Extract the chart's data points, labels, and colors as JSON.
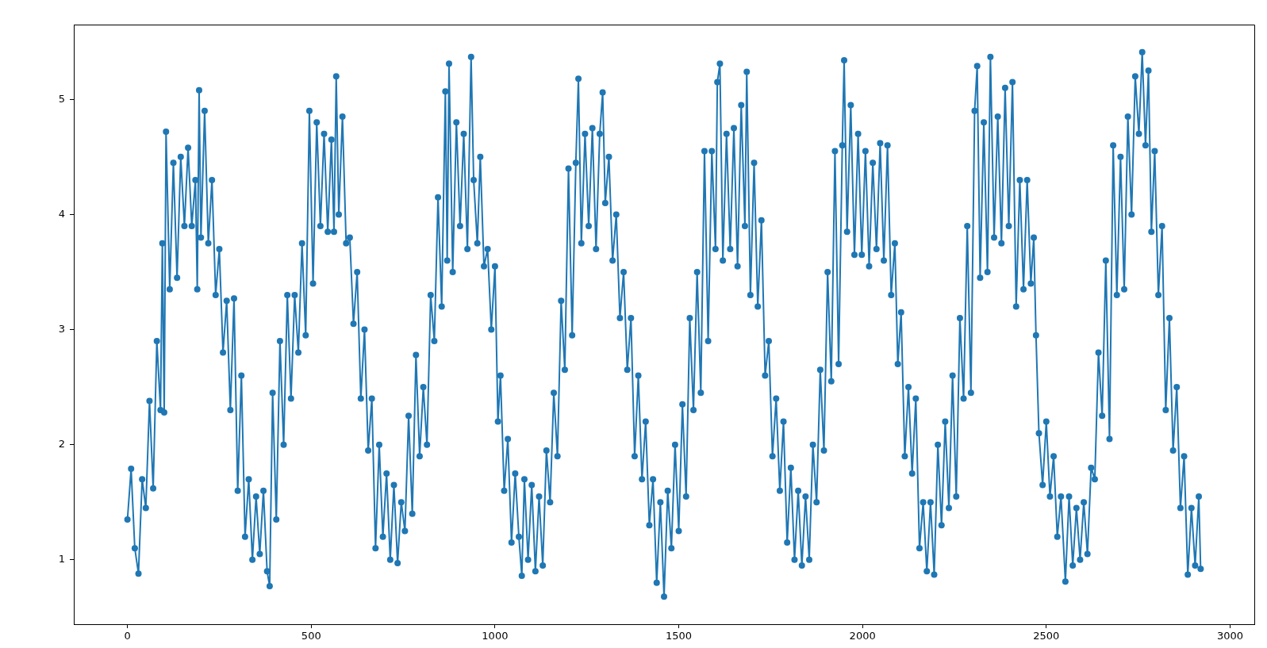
{
  "chart_data": {
    "type": "line",
    "x": [
      0,
      10,
      20,
      30,
      40,
      50,
      60,
      70,
      80,
      90,
      95,
      100,
      105,
      115,
      125,
      135,
      145,
      155,
      165,
      175,
      185,
      190,
      195,
      200,
      210,
      220,
      230,
      240,
      250,
      260,
      270,
      280,
      290,
      300,
      310,
      320,
      330,
      340,
      350,
      360,
      370,
      380,
      387,
      395,
      405,
      415,
      425,
      435,
      445,
      455,
      465,
      475,
      485,
      495,
      505,
      515,
      525,
      535,
      545,
      555,
      562,
      568,
      575,
      585,
      595,
      605,
      615,
      625,
      635,
      645,
      655,
      665,
      675,
      685,
      695,
      705,
      715,
      725,
      735,
      745,
      755,
      765,
      775,
      785,
      795,
      805,
      815,
      825,
      835,
      845,
      855,
      865,
      870,
      875,
      885,
      895,
      905,
      915,
      925,
      935,
      942,
      952,
      960,
      970,
      980,
      990,
      1000,
      1008,
      1015,
      1025,
      1035,
      1045,
      1055,
      1065,
      1073,
      1080,
      1090,
      1100,
      1110,
      1120,
      1130,
      1140,
      1150,
      1160,
      1170,
      1180,
      1190,
      1200,
      1210,
      1220,
      1227,
      1235,
      1245,
      1255,
      1265,
      1275,
      1285,
      1293,
      1300,
      1310,
      1320,
      1330,
      1340,
      1350,
      1360,
      1370,
      1380,
      1390,
      1400,
      1410,
      1420,
      1430,
      1440,
      1450,
      1460,
      1470,
      1480,
      1490,
      1500,
      1510,
      1520,
      1530,
      1540,
      1550,
      1560,
      1570,
      1580,
      1590,
      1600,
      1605,
      1612,
      1620,
      1630,
      1640,
      1650,
      1660,
      1670,
      1680,
      1685,
      1695,
      1705,
      1715,
      1725,
      1735,
      1745,
      1755,
      1765,
      1775,
      1785,
      1795,
      1805,
      1815,
      1825,
      1835,
      1845,
      1855,
      1865,
      1875,
      1885,
      1895,
      1905,
      1915,
      1925,
      1935,
      1945,
      1950,
      1958,
      1968,
      1978,
      1988,
      1998,
      2008,
      2018,
      2028,
      2038,
      2048,
      2058,
      2068,
      2078,
      2088,
      2096,
      2105,
      2115,
      2125,
      2135,
      2145,
      2155,
      2165,
      2175,
      2185,
      2195,
      2205,
      2215,
      2225,
      2235,
      2245,
      2255,
      2265,
      2275,
      2285,
      2295,
      2305,
      2312,
      2320,
      2330,
      2340,
      2348,
      2358,
      2368,
      2378,
      2388,
      2398,
      2408,
      2418,
      2428,
      2438,
      2448,
      2458,
      2466,
      2472,
      2480,
      2490,
      2500,
      2510,
      2520,
      2530,
      2540,
      2552,
      2562,
      2572,
      2582,
      2592,
      2602,
      2612,
      2622,
      2632,
      2642,
      2652,
      2662,
      2672,
      2682,
      2692,
      2702,
      2712,
      2722,
      2732,
      2742,
      2752,
      2761,
      2770,
      2778,
      2786,
      2795,
      2805,
      2815,
      2825,
      2835,
      2845,
      2855,
      2865,
      2875,
      2885,
      2895,
      2905,
      2915,
      2920
    ],
    "values": [
      1.35,
      1.79,
      1.1,
      0.88,
      1.7,
      1.45,
      2.38,
      1.62,
      2.9,
      2.3,
      3.75,
      2.28,
      4.72,
      3.35,
      4.45,
      3.45,
      4.5,
      3.9,
      4.58,
      3.9,
      4.3,
      3.35,
      5.08,
      3.8,
      4.9,
      3.75,
      4.3,
      3.3,
      3.7,
      2.8,
      3.25,
      2.3,
      3.27,
      1.6,
      2.6,
      1.2,
      1.7,
      1.0,
      1.55,
      1.05,
      1.6,
      0.9,
      0.77,
      2.45,
      1.35,
      2.9,
      2.0,
      3.3,
      2.4,
      3.3,
      2.8,
      3.75,
      2.95,
      4.9,
      3.4,
      4.8,
      3.9,
      4.7,
      3.85,
      4.65,
      3.85,
      5.2,
      4.0,
      4.85,
      3.75,
      3.8,
      3.05,
      3.5,
      2.4,
      3.0,
      1.95,
      2.4,
      1.1,
      2.0,
      1.2,
      1.75,
      1.0,
      1.65,
      0.97,
      1.5,
      1.25,
      2.25,
      1.4,
      2.78,
      1.9,
      2.5,
      2.0,
      3.3,
      2.9,
      4.15,
      3.2,
      5.07,
      3.6,
      5.31,
      3.5,
      4.8,
      3.9,
      4.7,
      3.7,
      5.37,
      4.3,
      3.75,
      4.5,
      3.55,
      3.7,
      3.0,
      3.55,
      2.2,
      2.6,
      1.6,
      2.05,
      1.15,
      1.75,
      1.2,
      0.86,
      1.7,
      1.0,
      1.65,
      0.9,
      1.55,
      0.95,
      1.95,
      1.5,
      2.45,
      1.9,
      3.25,
      2.65,
      4.4,
      2.95,
      4.45,
      5.18,
      3.75,
      4.7,
      3.9,
      4.75,
      3.7,
      4.7,
      5.06,
      4.1,
      4.5,
      3.6,
      4.0,
      3.1,
      3.5,
      2.65,
      3.1,
      1.9,
      2.6,
      1.7,
      2.2,
      1.3,
      1.7,
      0.8,
      1.5,
      0.68,
      1.6,
      1.1,
      2.0,
      1.25,
      2.35,
      1.55,
      3.1,
      2.3,
      3.5,
      2.45,
      4.55,
      2.9,
      4.55,
      3.7,
      5.15,
      5.31,
      3.6,
      4.7,
      3.7,
      4.75,
      3.55,
      4.95,
      3.9,
      5.24,
      3.3,
      4.45,
      3.2,
      3.95,
      2.6,
      2.9,
      1.9,
      2.4,
      1.6,
      2.2,
      1.15,
      1.8,
      1.0,
      1.6,
      0.95,
      1.55,
      1.0,
      2.0,
      1.5,
      2.65,
      1.95,
      3.5,
      2.55,
      4.55,
      2.7,
      4.6,
      5.34,
      3.85,
      4.95,
      3.65,
      4.7,
      3.65,
      4.55,
      3.55,
      4.45,
      3.7,
      4.62,
      3.6,
      4.6,
      3.3,
      3.75,
      2.7,
      3.15,
      1.9,
      2.5,
      1.75,
      2.4,
      1.1,
      1.5,
      0.9,
      1.5,
      0.87,
      2.0,
      1.3,
      2.2,
      1.45,
      2.6,
      1.55,
      3.1,
      2.4,
      3.9,
      2.45,
      4.9,
      5.29,
      3.45,
      4.8,
      3.5,
      5.37,
      3.8,
      4.85,
      3.75,
      5.1,
      3.9,
      5.15,
      3.2,
      4.3,
      3.35,
      4.3,
      3.4,
      3.8,
      2.95,
      2.1,
      1.65,
      2.2,
      1.55,
      1.9,
      1.2,
      1.55,
      0.81,
      1.55,
      0.95,
      1.45,
      1.0,
      1.5,
      1.05,
      1.8,
      1.7,
      2.8,
      2.25,
      3.6,
      2.05,
      4.6,
      3.3,
      4.5,
      3.35,
      4.85,
      4.0,
      5.2,
      4.7,
      5.41,
      4.6,
      5.25,
      3.85,
      4.55,
      3.3,
      3.9,
      2.3,
      3.1,
      1.95,
      2.5,
      1.45,
      1.9,
      0.87,
      1.45,
      0.95,
      1.55,
      0.92
    ],
    "color": "#1f77b4",
    "xlim": [
      -146,
      3066
    ],
    "ylim": [
      0.44,
      5.65
    ],
    "xticks": [
      0,
      500,
      1000,
      1500,
      2000,
      2500,
      3000
    ],
    "yticks": [
      1,
      2,
      3,
      4,
      5
    ],
    "marker": "circle",
    "line_style": "solid"
  }
}
